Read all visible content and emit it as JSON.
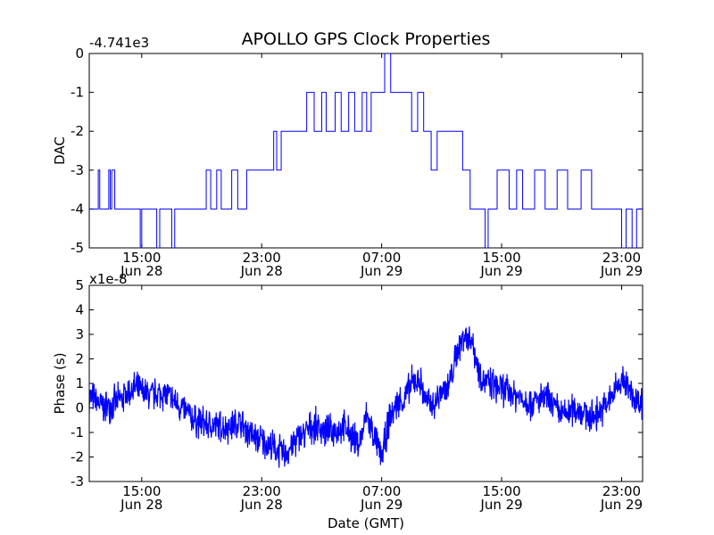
{
  "colors": {
    "series": "#0000ff",
    "axis": "#000000",
    "background": "#ffffff"
  },
  "chart_data": [
    {
      "type": "line",
      "title": "APOLLO GPS Clock Properties",
      "ylabel": "DAC",
      "xlabel": "",
      "offset_label": "-4.741e3",
      "ylim": [
        -5,
        0
      ],
      "xlim_hours": [
        11.5,
        48.4
      ],
      "yticks": [
        0,
        -1,
        -2,
        -3,
        -4,
        -5
      ],
      "ytick_labels": [
        "0",
        "-1",
        "-2",
        "-3",
        "-4",
        "-5"
      ],
      "xticks_hours": [
        15,
        23,
        31,
        39,
        47
      ],
      "xtick_times": [
        "15:00",
        "23:00",
        "07:00",
        "15:00",
        "23:00"
      ],
      "xtick_dates": [
        "Jun 28",
        "Jun 28",
        "Jun 29",
        "Jun 29",
        "Jun 29"
      ],
      "series": [
        {
          "name": "DAC",
          "step_segments": [
            [
              11.5,
              -4
            ],
            [
              12.1,
              -3
            ],
            [
              12.2,
              -4
            ],
            [
              12.8,
              -3
            ],
            [
              12.9,
              -4
            ],
            [
              13.0,
              -3
            ],
            [
              13.2,
              -4
            ],
            [
              14.2,
              -4
            ],
            [
              14.9,
              -5
            ],
            [
              15.0,
              -4
            ],
            [
              16.0,
              -5
            ],
            [
              16.2,
              -4
            ],
            [
              17.0,
              -5
            ],
            [
              17.2,
              -4
            ],
            [
              18.5,
              -4
            ],
            [
              19.3,
              -3
            ],
            [
              19.6,
              -4
            ],
            [
              20.0,
              -3
            ],
            [
              20.3,
              -4
            ],
            [
              21.0,
              -3
            ],
            [
              21.4,
              -4
            ],
            [
              22.0,
              -3
            ],
            [
              23.2,
              -3
            ],
            [
              23.8,
              -2
            ],
            [
              24.0,
              -3
            ],
            [
              24.3,
              -2
            ],
            [
              25.5,
              -2
            ],
            [
              26.0,
              -1
            ],
            [
              26.5,
              -2
            ],
            [
              27.0,
              -1
            ],
            [
              27.3,
              -2
            ],
            [
              27.9,
              -1
            ],
            [
              28.3,
              -2
            ],
            [
              28.8,
              -1
            ],
            [
              29.2,
              -2
            ],
            [
              29.7,
              -1
            ],
            [
              30.0,
              -2
            ],
            [
              30.3,
              -1
            ],
            [
              31.0,
              -1
            ],
            [
              31.2,
              0
            ],
            [
              31.6,
              -1
            ],
            [
              32.5,
              -1
            ],
            [
              33.0,
              -2
            ],
            [
              33.4,
              -1
            ],
            [
              33.8,
              -2
            ],
            [
              34.3,
              -3
            ],
            [
              34.7,
              -2
            ],
            [
              36.3,
              -2
            ],
            [
              36.4,
              -3
            ],
            [
              36.9,
              -4
            ],
            [
              37.5,
              -4
            ],
            [
              37.9,
              -5
            ],
            [
              38.1,
              -4
            ],
            [
              38.7,
              -3
            ],
            [
              39.5,
              -4
            ],
            [
              40.0,
              -3
            ],
            [
              40.4,
              -4
            ],
            [
              41.2,
              -3
            ],
            [
              41.9,
              -4
            ],
            [
              42.7,
              -3
            ],
            [
              43.4,
              -4
            ],
            [
              44.3,
              -3
            ],
            [
              45.0,
              -4
            ],
            [
              46.8,
              -4
            ],
            [
              47.0,
              -5
            ],
            [
              47.3,
              -4
            ],
            [
              47.7,
              -5
            ],
            [
              48.0,
              -4
            ],
            [
              48.4,
              -4
            ]
          ]
        }
      ]
    },
    {
      "type": "line",
      "title": "",
      "ylabel": "Phase (s)",
      "xlabel": "Date (GMT)",
      "offset_label": "x1e-8",
      "ylim": [
        -3,
        5
      ],
      "xlim_hours": [
        11.5,
        48.4
      ],
      "yticks": [
        5,
        4,
        3,
        2,
        1,
        0,
        -1,
        -2,
        -3
      ],
      "ytick_labels": [
        "5",
        "4",
        "3",
        "2",
        "1",
        "0",
        "-1",
        "-2",
        "-3"
      ],
      "xticks_hours": [
        15,
        23,
        31,
        39,
        47
      ],
      "xtick_times": [
        "15:00",
        "23:00",
        "07:00",
        "15:00",
        "23:00"
      ],
      "xtick_dates": [
        "Jun 28",
        "Jun 28",
        "Jun 29",
        "Jun 29",
        "Jun 29"
      ],
      "series": [
        {
          "name": "Phase",
          "x_hours": [
            11.5,
            12.5,
            13.5,
            14.5,
            15.5,
            16.5,
            17.5,
            18.5,
            19.5,
            20.5,
            21.5,
            22.5,
            23.5,
            24.5,
            25.5,
            26.5,
            27.5,
            28.5,
            29.5,
            30.0,
            30.5,
            31.0,
            31.5,
            32.0,
            32.5,
            33.0,
            33.5,
            34.0,
            34.5,
            35.0,
            35.5,
            36.0,
            36.5,
            37.0,
            37.5,
            38.0,
            39.0,
            40.0,
            41.0,
            42.0,
            43.0,
            44.0,
            45.0,
            46.0,
            47.0,
            48.0,
            48.4
          ],
          "y": [
            0.5,
            0.0,
            0.3,
            0.8,
            0.5,
            0.6,
            0.1,
            -0.5,
            -0.7,
            -0.8,
            -0.6,
            -1.2,
            -1.5,
            -1.9,
            -1.2,
            -0.7,
            -1.0,
            -0.8,
            -1.5,
            -0.3,
            -1.2,
            -2.0,
            -0.5,
            0.2,
            0.3,
            1.0,
            1.2,
            0.2,
            0.1,
            0.7,
            0.9,
            2.2,
            3.0,
            2.8,
            1.5,
            1.0,
            0.8,
            0.5,
            0.2,
            0.4,
            -0.3,
            0.0,
            -0.4,
            0.1,
            1.2,
            0.3,
            0.2
          ],
          "noise_amplitude": 0.55
        }
      ]
    }
  ]
}
